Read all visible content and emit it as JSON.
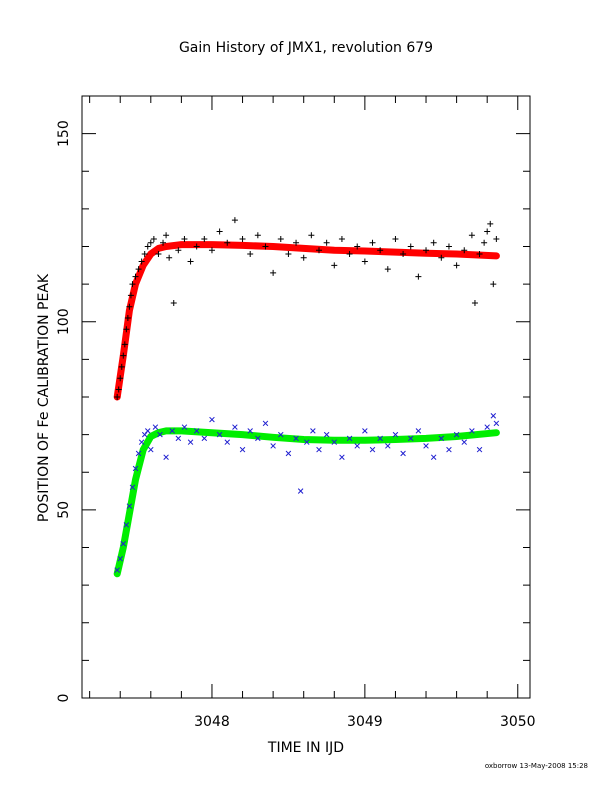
{
  "chart_data": {
    "type": "scatter",
    "title": "Gain History of JMX1, revolution 679",
    "xlabel": "TIME IN IJD",
    "ylabel": "POSITION OF Fe CALIBRATION PEAK",
    "xlim": [
      3047.15,
      3050.08
    ],
    "ylim": [
      0,
      160
    ],
    "xticks": [
      3048,
      3049,
      3050
    ],
    "yticks": [
      0,
      50,
      100,
      150
    ],
    "xtick_labels": [
      "3048",
      "3049",
      "3050"
    ],
    "ytick_labels": [
      "0",
      "50",
      "100",
      "150"
    ],
    "series": [
      {
        "marker": "+",
        "color": "#000000",
        "points": [
          [
            3047.38,
            80
          ],
          [
            3047.39,
            82
          ],
          [
            3047.4,
            85
          ],
          [
            3047.41,
            88
          ],
          [
            3047.42,
            91
          ],
          [
            3047.43,
            94
          ],
          [
            3047.44,
            98
          ],
          [
            3047.45,
            101
          ],
          [
            3047.46,
            104
          ],
          [
            3047.47,
            107
          ],
          [
            3047.48,
            110
          ],
          [
            3047.5,
            112
          ],
          [
            3047.52,
            114
          ],
          [
            3047.54,
            116
          ],
          [
            3047.56,
            118
          ],
          [
            3047.58,
            120
          ],
          [
            3047.6,
            121
          ],
          [
            3047.62,
            122
          ],
          [
            3047.65,
            118
          ],
          [
            3047.68,
            121
          ],
          [
            3047.7,
            123
          ],
          [
            3047.72,
            117
          ],
          [
            3047.75,
            105
          ],
          [
            3047.78,
            119
          ],
          [
            3047.82,
            122
          ],
          [
            3047.86,
            116
          ],
          [
            3047.9,
            120
          ],
          [
            3047.95,
            122
          ],
          [
            3048.0,
            119
          ],
          [
            3048.05,
            124
          ],
          [
            3048.1,
            121
          ],
          [
            3048.15,
            127
          ],
          [
            3048.2,
            122
          ],
          [
            3048.25,
            118
          ],
          [
            3048.3,
            123
          ],
          [
            3048.35,
            120
          ],
          [
            3048.4,
            113
          ],
          [
            3048.45,
            122
          ],
          [
            3048.5,
            118
          ],
          [
            3048.55,
            121
          ],
          [
            3048.6,
            117
          ],
          [
            3048.65,
            123
          ],
          [
            3048.7,
            119
          ],
          [
            3048.75,
            121
          ],
          [
            3048.8,
            115
          ],
          [
            3048.85,
            122
          ],
          [
            3048.9,
            118
          ],
          [
            3048.95,
            120
          ],
          [
            3049.0,
            116
          ],
          [
            3049.05,
            121
          ],
          [
            3049.1,
            119
          ],
          [
            3049.15,
            114
          ],
          [
            3049.2,
            122
          ],
          [
            3049.25,
            118
          ],
          [
            3049.3,
            120
          ],
          [
            3049.35,
            112
          ],
          [
            3049.4,
            119
          ],
          [
            3049.45,
            121
          ],
          [
            3049.5,
            117
          ],
          [
            3049.55,
            120
          ],
          [
            3049.6,
            115
          ],
          [
            3049.65,
            119
          ],
          [
            3049.7,
            123
          ],
          [
            3049.72,
            105
          ],
          [
            3049.75,
            118
          ],
          [
            3049.78,
            121
          ],
          [
            3049.8,
            124
          ],
          [
            3049.82,
            126
          ],
          [
            3049.84,
            110
          ],
          [
            3049.86,
            122
          ]
        ]
      },
      {
        "marker": "x",
        "color": "#1f1fd0",
        "points": [
          [
            3047.38,
            34
          ],
          [
            3047.4,
            37
          ],
          [
            3047.42,
            41
          ],
          [
            3047.44,
            46
          ],
          [
            3047.46,
            51
          ],
          [
            3047.48,
            56
          ],
          [
            3047.5,
            61
          ],
          [
            3047.52,
            65
          ],
          [
            3047.54,
            68
          ],
          [
            3047.56,
            70
          ],
          [
            3047.58,
            71
          ],
          [
            3047.6,
            66
          ],
          [
            3047.63,
            72
          ],
          [
            3047.66,
            70
          ],
          [
            3047.7,
            64
          ],
          [
            3047.74,
            71
          ],
          [
            3047.78,
            69
          ],
          [
            3047.82,
            72
          ],
          [
            3047.86,
            68
          ],
          [
            3047.9,
            71
          ],
          [
            3047.95,
            69
          ],
          [
            3048.0,
            74
          ],
          [
            3048.05,
            70
          ],
          [
            3048.1,
            68
          ],
          [
            3048.15,
            72
          ],
          [
            3048.2,
            66
          ],
          [
            3048.25,
            71
          ],
          [
            3048.3,
            69
          ],
          [
            3048.35,
            73
          ],
          [
            3048.4,
            67
          ],
          [
            3048.45,
            70
          ],
          [
            3048.5,
            65
          ],
          [
            3048.55,
            69
          ],
          [
            3048.58,
            55
          ],
          [
            3048.62,
            68
          ],
          [
            3048.66,
            71
          ],
          [
            3048.7,
            66
          ],
          [
            3048.75,
            70
          ],
          [
            3048.8,
            68
          ],
          [
            3048.85,
            64
          ],
          [
            3048.9,
            69
          ],
          [
            3048.95,
            67
          ],
          [
            3049.0,
            71
          ],
          [
            3049.05,
            66
          ],
          [
            3049.1,
            69
          ],
          [
            3049.15,
            67
          ],
          [
            3049.2,
            70
          ],
          [
            3049.25,
            65
          ],
          [
            3049.3,
            69
          ],
          [
            3049.35,
            71
          ],
          [
            3049.4,
            67
          ],
          [
            3049.45,
            64
          ],
          [
            3049.5,
            69
          ],
          [
            3049.55,
            66
          ],
          [
            3049.6,
            70
          ],
          [
            3049.65,
            68
          ],
          [
            3049.7,
            71
          ],
          [
            3049.75,
            66
          ],
          [
            3049.8,
            72
          ],
          [
            3049.84,
            75
          ],
          [
            3049.86,
            73
          ]
        ]
      }
    ],
    "fits": [
      {
        "color": "#ff0000",
        "points": [
          [
            3047.38,
            80
          ],
          [
            3047.42,
            91
          ],
          [
            3047.46,
            103
          ],
          [
            3047.5,
            110
          ],
          [
            3047.55,
            115
          ],
          [
            3047.6,
            118
          ],
          [
            3047.65,
            119.5
          ],
          [
            3047.7,
            120
          ],
          [
            3047.8,
            120.5
          ],
          [
            3048.0,
            120.5
          ],
          [
            3048.2,
            120.3
          ],
          [
            3048.4,
            120
          ],
          [
            3048.6,
            119.5
          ],
          [
            3048.8,
            119
          ],
          [
            3049.0,
            118.8
          ],
          [
            3049.2,
            118.5
          ],
          [
            3049.4,
            118.2
          ],
          [
            3049.6,
            118
          ],
          [
            3049.86,
            117.5
          ]
        ]
      },
      {
        "color": "#00ee00",
        "points": [
          [
            3047.38,
            33
          ],
          [
            3047.42,
            40
          ],
          [
            3047.46,
            49
          ],
          [
            3047.5,
            58
          ],
          [
            3047.55,
            66
          ],
          [
            3047.6,
            69.5
          ],
          [
            3047.65,
            70.5
          ],
          [
            3047.7,
            71
          ],
          [
            3047.8,
            71
          ],
          [
            3048.0,
            70.5
          ],
          [
            3048.2,
            70
          ],
          [
            3048.4,
            69.3
          ],
          [
            3048.6,
            68.7
          ],
          [
            3048.8,
            68.5
          ],
          [
            3049.0,
            68.5
          ],
          [
            3049.2,
            68.7
          ],
          [
            3049.4,
            69
          ],
          [
            3049.6,
            69.5
          ],
          [
            3049.86,
            70.5
          ]
        ]
      }
    ]
  },
  "footer": "oxborrow 13-May-2008 15:28"
}
